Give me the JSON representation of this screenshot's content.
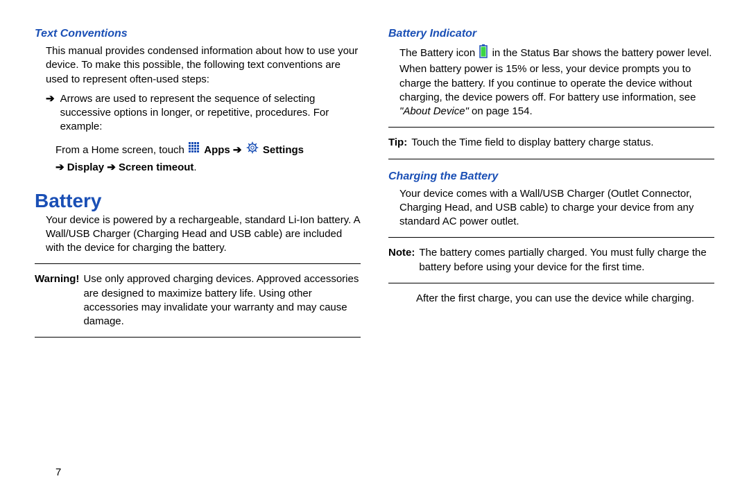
{
  "colors": {
    "subhead": "#1a4fb5",
    "mainhead": "#1a4fb5",
    "icon_apps": "#1a4fb5",
    "icon_settings": "#1a4fb5",
    "icon_battery_fill": "#3bd645",
    "icon_battery_stroke": "#1a4fb5",
    "text": "#000000",
    "rule": "#000000"
  },
  "fontsize": {
    "subhead": 16,
    "mainhead": 28,
    "body": 15
  },
  "left": {
    "subhead1": "Text Conventions",
    "intro": "This manual provides condensed information about how to use your device. To make this possible, the following text conventions are used to represent often-used steps:",
    "bullet_arrow": "➔",
    "bullet_text": "Arrows are used to represent the sequence of selecting successive options in longer, or repetitive, procedures. For example:",
    "example_prefix": "From a Home screen, touch ",
    "apps_label": "Apps",
    "arrow": "➔",
    "settings_label": "Settings",
    "display_label": "Display",
    "screen_timeout_label": "Screen timeout",
    "mainhead": "Battery",
    "battery_intro": "Your device is powered by a rechargeable, standard Li-Ion battery. A Wall/USB Charger (Charging Head and USB cable) are included with the device for charging the battery.",
    "warning_label": "Warning!",
    "warning_text": "Use only approved charging devices. Approved accessories are designed to maximize battery life. Using other accessories may invalidate your warranty and may cause damage."
  },
  "right": {
    "subhead1": "Battery Indicator",
    "indicator_prefix": "The Battery icon ",
    "indicator_mid": " in the Status Bar shows the battery power level. When battery power is 15% or less, your device prompts you to charge the battery. If you continue to operate the device without charging, the device powers off. For battery use information, see ",
    "indicator_ref": "\"About Device\"",
    "indicator_suffix": " on page 154.",
    "tip_label": "Tip:",
    "tip_text": "Touch the Time field to display battery charge status.",
    "subhead2": "Charging the Battery",
    "charging_intro": "Your device comes with a Wall/USB Charger (Outlet Connector, Charging Head, and USB cable) to charge your device from any standard AC power outlet.",
    "note_label": "Note:",
    "note_text": "The battery comes partially charged. You must fully charge the battery before using your device for the first time.",
    "after": "After the first charge, you can use the device while charging."
  },
  "page_number": "7"
}
